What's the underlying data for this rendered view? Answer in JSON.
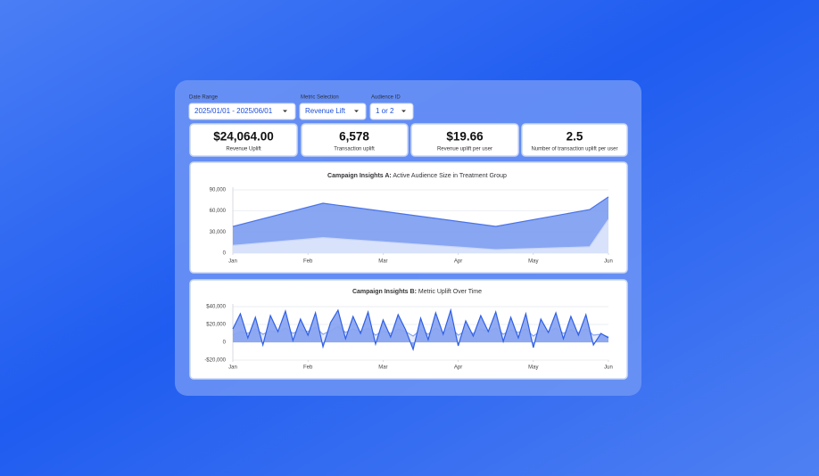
{
  "filters": [
    {
      "label": "Date Range",
      "value": "2025/01/01 - 2025/06/01"
    },
    {
      "label": "Metric Selection",
      "value": "Revenue Lift"
    },
    {
      "label": "Audience ID",
      "value": "1 or 2"
    }
  ],
  "kpis": [
    {
      "value": "$24,064.00",
      "label": "Revenue Uplift"
    },
    {
      "value": "6,578",
      "label": "Transaction uplift"
    },
    {
      "value": "$19.66",
      "label": "Revenue uplift per user"
    },
    {
      "value": "2.5",
      "label": "Number of transaction uplift per user"
    }
  ],
  "chart_data": [
    {
      "type": "area",
      "title_prefix": "Campaign Insights A:",
      "title": "Active Audience Size in Treatment Group",
      "x": [
        0,
        1.2,
        3.5,
        4.75,
        5
      ],
      "series": [
        {
          "color": "#4a73e8",
          "fill_color": "#7397ef",
          "values": [
            38000,
            71000,
            38000,
            62000,
            80000
          ]
        },
        {
          "color": "#c9d5f7",
          "fill_color": "#e6ecfc",
          "values": [
            11000,
            22000,
            5000,
            9000,
            48000
          ]
        }
      ],
      "xlim": [
        0,
        5
      ],
      "xticks": [
        {
          "value": 0,
          "label": "Jan"
        },
        {
          "value": 1,
          "label": "Feb"
        },
        {
          "value": 2,
          "label": "Mar"
        },
        {
          "value": 3,
          "label": "Apr"
        },
        {
          "value": 4,
          "label": "May"
        },
        {
          "value": 5,
          "label": "Jun"
        }
      ],
      "ylim": [
        0,
        90000
      ],
      "yticks": [
        0,
        {
          "value": 30000,
          "label": "30,000"
        },
        {
          "value": 60000,
          "label": "60,000"
        },
        {
          "value": 90000,
          "label": "90,000"
        }
      ],
      "grid": true
    },
    {
      "type": "area",
      "title_prefix": "Campaign Insights B:",
      "title": "Metric Uplift Over Time",
      "x": [
        0,
        0.1,
        0.2,
        0.3,
        0.4,
        0.5,
        0.6,
        0.7,
        0.8,
        0.9,
        1,
        1.1,
        1.2,
        1.3,
        1.4,
        1.5,
        1.6,
        1.7,
        1.8,
        1.9,
        2,
        2.1,
        2.2,
        2.3,
        2.4,
        2.5,
        2.6,
        2.7,
        2.8,
        2.9,
        3,
        3.1,
        3.2,
        3.3,
        3.4,
        3.5,
        3.6,
        3.7,
        3.8,
        3.9,
        4,
        4.1,
        4.2,
        4.3,
        4.4,
        4.5,
        4.6,
        4.7,
        4.8,
        4.9,
        5
      ],
      "series": [
        {
          "color": "#8aa6f0",
          "fill_color": "#dfe6fb",
          "values": [
            8000,
            12000,
            10000,
            15000,
            9000,
            13000,
            11000,
            16000,
            10000,
            14000,
            12000,
            17000,
            9000,
            13000,
            18000,
            11000,
            15000,
            12000,
            16000,
            8000,
            13000,
            10000,
            15000,
            12000,
            7000,
            14000,
            9000,
            16000,
            11000,
            17000,
            8000,
            13000,
            10000,
            15000,
            12000,
            16000,
            9000,
            14000,
            11000,
            15000,
            7000,
            13000,
            12000,
            16000,
            10000,
            14000,
            11000,
            15000,
            8000,
            9000,
            6000
          ]
        },
        {
          "color": "#2f5fe3",
          "fill_color": "#7f9cf0",
          "values": [
            15000,
            32000,
            5000,
            28000,
            -3000,
            30000,
            12000,
            35000,
            2000,
            26000,
            8000,
            33000,
            -5000,
            22000,
            36000,
            4000,
            29000,
            10000,
            34000,
            -2000,
            25000,
            6000,
            31000,
            14000,
            -8000,
            27000,
            3000,
            33000,
            9000,
            36000,
            -4000,
            24000,
            7000,
            30000,
            12000,
            34000,
            1000,
            28000,
            5000,
            32000,
            -6000,
            26000,
            11000,
            33000,
            4000,
            29000,
            8000,
            31000,
            -3000,
            10000,
            5000
          ]
        }
      ],
      "xlim": [
        0,
        5
      ],
      "xticks": [
        {
          "value": 0,
          "label": "Jan"
        },
        {
          "value": 1,
          "label": "Feb"
        },
        {
          "value": 2,
          "label": "Mar"
        },
        {
          "value": 3,
          "label": "Apr"
        },
        {
          "value": 4,
          "label": "May"
        },
        {
          "value": 5,
          "label": "Jun"
        }
      ],
      "ylim": [
        -20000,
        40000
      ],
      "yticks": [
        {
          "value": -20000,
          "label": "-$20,000"
        },
        0,
        {
          "value": 20000,
          "label": "$20,000"
        },
        {
          "value": 40000,
          "label": "$40,000"
        }
      ],
      "grid": true
    }
  ]
}
